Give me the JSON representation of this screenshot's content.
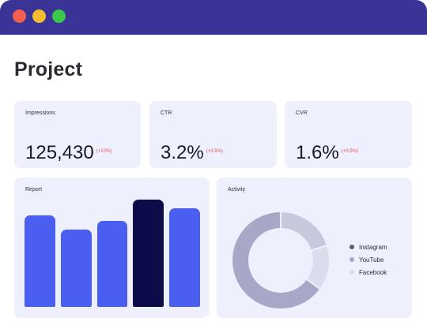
{
  "window": {
    "controls": [
      "close",
      "minimize",
      "maximize"
    ],
    "colors": {
      "titlebar": "#3a3496",
      "close": "#f1604f",
      "minimize": "#f5bd32",
      "maximize": "#3cc84a"
    }
  },
  "page": {
    "title": "Project"
  },
  "stats": [
    {
      "label": "Impressions",
      "value": "125,430",
      "delta": "(+12%)"
    },
    {
      "label": "CTR",
      "value": "3.2%",
      "delta": "(+3.5%)"
    },
    {
      "label": "CVR",
      "value": "1.6%",
      "delta": "(+0.5%)"
    }
  ],
  "report": {
    "label": "Report",
    "chart_data": {
      "type": "bar",
      "categories": [
        "",
        "",
        "",
        "",
        ""
      ],
      "values": [
        63,
        53,
        59,
        74,
        68
      ],
      "ylim": [
        0,
        76
      ],
      "highlight_index": 3,
      "colors": {
        "bar": "#4a5ff0",
        "highlight": "#0d0c4a"
      }
    }
  },
  "activity": {
    "label": "Activity",
    "chart_data": {
      "type": "pie",
      "donut": true,
      "labels": [
        "Instagram",
        "YouTube",
        "Facebook"
      ],
      "values": [
        65,
        20,
        15
      ],
      "colors": [
        "#a7a8c8",
        "#c8c9dd",
        "#dcddec"
      ],
      "legend_colors": [
        "#5e5e6e",
        "#a7a8c8",
        "#dcddec"
      ],
      "legend": "right"
    }
  }
}
